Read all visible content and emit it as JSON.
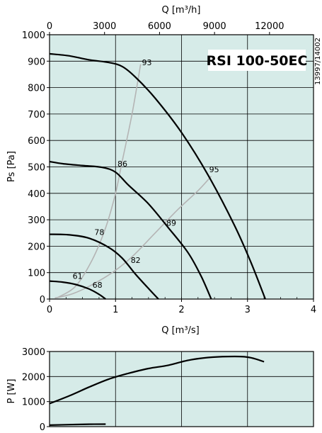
{
  "colors": {
    "plot_bg": "#d6ebe8",
    "curve": "#000000",
    "efficiency_curve": "#b4b4b4"
  },
  "chart_data": [
    {
      "type": "line",
      "title": "RSI 100-50EC",
      "side_code": "13997/14002",
      "xlabel": "Q [m³/s]",
      "x2label": "Q [m³/h]",
      "ylabel": "Ps [Pa]",
      "xlim": [
        0,
        4
      ],
      "ylim": [
        0,
        1000
      ],
      "x_ticks": [
        0,
        1,
        2,
        3,
        4
      ],
      "y_ticks": [
        0,
        100,
        200,
        300,
        400,
        500,
        600,
        700,
        800,
        900,
        1000
      ],
      "x2_ticks": [
        0,
        3000,
        6000,
        9000,
        12000
      ],
      "x2_tick_labels": [
        "0",
        "3000",
        "6000",
        "9000",
        "12000"
      ],
      "grid": true,
      "series": [
        {
          "x": [
            0,
            0.3,
            0.6,
            0.9,
            1.1,
            1.3,
            1.6,
            2.0,
            2.4,
            2.8,
            3.05,
            3.27
          ],
          "y": [
            928,
            920,
            905,
            895,
            880,
            840,
            760,
            630,
            470,
            280,
            140,
            0
          ]
        },
        {
          "x": [
            0,
            0.2,
            0.5,
            0.8,
            1.0,
            1.2,
            1.5,
            1.8,
            2.1,
            2.3,
            2.45
          ],
          "y": [
            520,
            512,
            505,
            498,
            480,
            430,
            360,
            270,
            175,
            85,
            0
          ]
        },
        {
          "x": [
            0,
            0.3,
            0.6,
            0.9,
            1.1,
            1.3,
            1.5,
            1.65
          ],
          "y": [
            245,
            243,
            230,
            195,
            155,
            95,
            40,
            0
          ]
        },
        {
          "x": [
            0,
            0.2,
            0.4,
            0.6,
            0.75,
            0.85
          ],
          "y": [
            68,
            64,
            55,
            38,
            18,
            0
          ]
        }
      ],
      "efficiency_lines": [
        {
          "x": [
            0.12,
            0.4,
            0.65,
            0.85,
            1.0,
            1.1,
            1.25,
            1.38
          ],
          "y": [
            5,
            50,
            150,
            270,
            400,
            520,
            700,
            888
          ]
        },
        {
          "x": [
            0.08,
            0.35,
            0.65,
            0.95,
            1.25,
            1.6,
            1.95,
            2.25,
            2.45
          ],
          "y": [
            4,
            20,
            55,
            100,
            160,
            250,
            340,
            410,
            465
          ]
        }
      ],
      "efficiency_labels": [
        {
          "text": "93",
          "x": 1.4,
          "y": 885
        },
        {
          "text": "86",
          "x": 1.03,
          "y": 502
        },
        {
          "text": "95",
          "x": 2.42,
          "y": 480
        },
        {
          "text": "89",
          "x": 1.77,
          "y": 278
        },
        {
          "text": "78",
          "x": 0.68,
          "y": 242
        },
        {
          "text": "82",
          "x": 1.23,
          "y": 137
        },
        {
          "text": "61",
          "x": 0.35,
          "y": 77
        },
        {
          "text": "68",
          "x": 0.65,
          "y": 43
        }
      ]
    },
    {
      "type": "line",
      "ylabel": "P [W]",
      "xlim": [
        0,
        4
      ],
      "ylim": [
        0,
        3000
      ],
      "y_ticks": [
        0,
        1000,
        2000,
        3000
      ],
      "grid": true,
      "series": [
        {
          "x": [
            0,
            0.3,
            0.6,
            0.9,
            1.2,
            1.5,
            1.8,
            2.1,
            2.4,
            2.7,
            2.95,
            3.1,
            3.25
          ],
          "y": [
            920,
            1230,
            1580,
            1900,
            2130,
            2320,
            2450,
            2650,
            2760,
            2800,
            2790,
            2720,
            2590
          ]
        },
        {
          "x": [
            0,
            0.3,
            0.6,
            0.85
          ],
          "y": [
            60,
            80,
            95,
            100
          ]
        }
      ]
    }
  ]
}
